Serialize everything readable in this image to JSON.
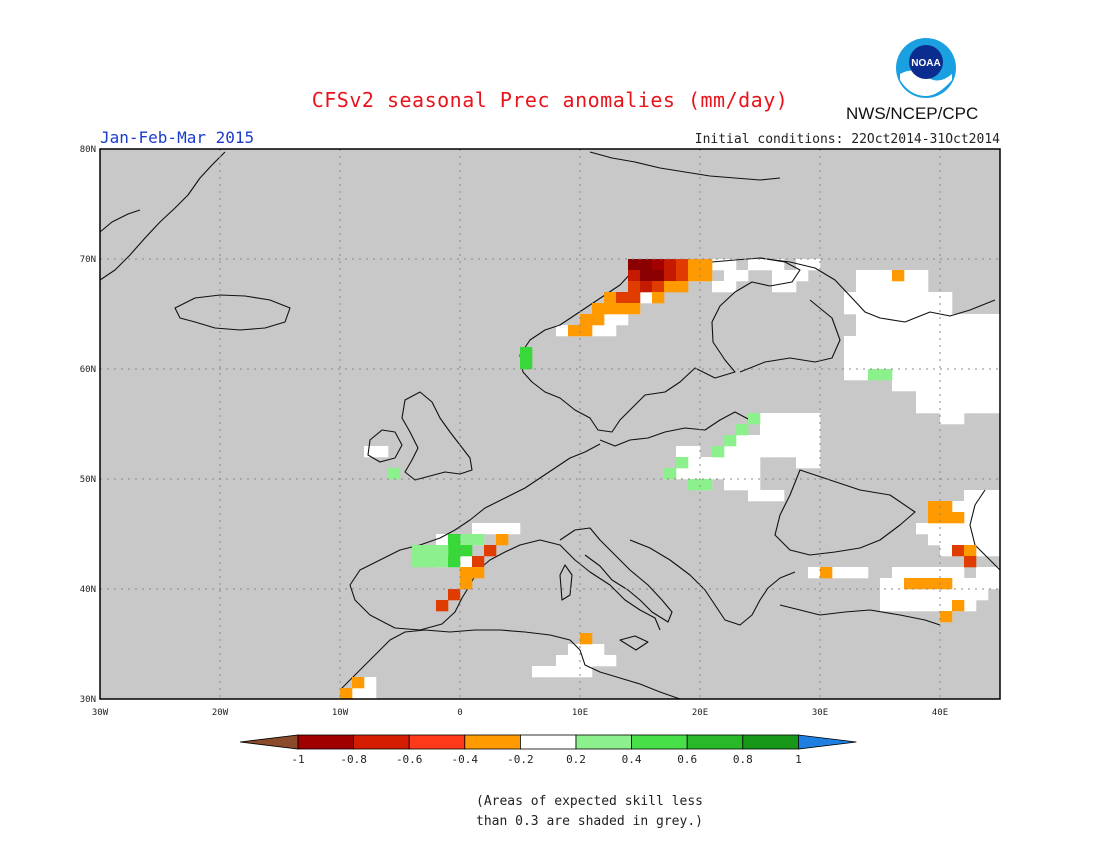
{
  "header": {
    "title": "CFSv2 seasonal Prec anomalies (mm/day)",
    "season": "Jan-Feb-Mar 2015",
    "init_conditions": "Initial conditions: 22Oct2014-31Oct2014",
    "agency": "NWS/NCEP/CPC",
    "logo_text": "NOAA"
  },
  "map": {
    "lon_range": [
      -30,
      45
    ],
    "lat_range": [
      30,
      80
    ],
    "lon_ticks": [
      {
        "v": -30,
        "label": "30W"
      },
      {
        "v": -20,
        "label": "20W"
      },
      {
        "v": -10,
        "label": "10W"
      },
      {
        "v": 0,
        "label": "0"
      },
      {
        "v": 10,
        "label": "10E"
      },
      {
        "v": 20,
        "label": "20E"
      },
      {
        "v": 30,
        "label": "30E"
      },
      {
        "v": 40,
        "label": "40E"
      }
    ],
    "lat_ticks": [
      {
        "v": 30,
        "label": "30N"
      },
      {
        "v": 40,
        "label": "40N"
      },
      {
        "v": 50,
        "label": "50N"
      },
      {
        "v": 60,
        "label": "60N"
      },
      {
        "v": 70,
        "label": "70N"
      },
      {
        "v": 80,
        "label": "80N"
      }
    ],
    "background_color": "#c8c8c8",
    "coast_color": "#111111",
    "grid": "dotted",
    "white_cells": [
      [
        21,
        69
      ],
      [
        22,
        69
      ],
      [
        24,
        69
      ],
      [
        25,
        69
      ],
      [
        26,
        69
      ],
      [
        28,
        69
      ],
      [
        29,
        69
      ],
      [
        17,
        68
      ],
      [
        18,
        68
      ],
      [
        19,
        68
      ],
      [
        20,
        68
      ],
      [
        22,
        68
      ],
      [
        23,
        68
      ],
      [
        26,
        68
      ],
      [
        27,
        68
      ],
      [
        28,
        68
      ],
      [
        33,
        68
      ],
      [
        34,
        68
      ],
      [
        35,
        68
      ],
      [
        37,
        68
      ],
      [
        38,
        68
      ],
      [
        15,
        67
      ],
      [
        16,
        67
      ],
      [
        21,
        67
      ],
      [
        22,
        67
      ],
      [
        26,
        67
      ],
      [
        27,
        67
      ],
      [
        33,
        67
      ],
      [
        34,
        67
      ],
      [
        35,
        67
      ],
      [
        36,
        67
      ],
      [
        37,
        67
      ],
      [
        38,
        67
      ],
      [
        14,
        66
      ],
      [
        15,
        66
      ],
      [
        32,
        66
      ],
      [
        33,
        66
      ],
      [
        34,
        66
      ],
      [
        35,
        66
      ],
      [
        36,
        66
      ],
      [
        37,
        66
      ],
      [
        38,
        66
      ],
      [
        39,
        66
      ],
      [
        40,
        66
      ],
      [
        13,
        65
      ],
      [
        14,
        65
      ],
      [
        32,
        65
      ],
      [
        33,
        65
      ],
      [
        34,
        65
      ],
      [
        35,
        65
      ],
      [
        36,
        65
      ],
      [
        37,
        65
      ],
      [
        38,
        65
      ],
      [
        39,
        65
      ],
      [
        40,
        65
      ],
      [
        12,
        64
      ],
      [
        13,
        64
      ],
      [
        33,
        64
      ],
      [
        34,
        64
      ],
      [
        35,
        64
      ],
      [
        36,
        64
      ],
      [
        37,
        64
      ],
      [
        38,
        64
      ],
      [
        39,
        64
      ],
      [
        40,
        64
      ],
      [
        41,
        64
      ],
      [
        42,
        64
      ],
      [
        43,
        64
      ],
      [
        44,
        64
      ],
      [
        8,
        63
      ],
      [
        9,
        63
      ],
      [
        10,
        63
      ],
      [
        11,
        63
      ],
      [
        12,
        63
      ],
      [
        33,
        63
      ],
      [
        34,
        63
      ],
      [
        35,
        63
      ],
      [
        36,
        63
      ],
      [
        37,
        63
      ],
      [
        38,
        63
      ],
      [
        39,
        63
      ],
      [
        40,
        63
      ],
      [
        41,
        63
      ],
      [
        42,
        63
      ],
      [
        43,
        63
      ],
      [
        44,
        63
      ],
      [
        32,
        62
      ],
      [
        33,
        62
      ],
      [
        34,
        62
      ],
      [
        35,
        62
      ],
      [
        36,
        62
      ],
      [
        37,
        62
      ],
      [
        38,
        62
      ],
      [
        39,
        62
      ],
      [
        40,
        62
      ],
      [
        41,
        62
      ],
      [
        42,
        62
      ],
      [
        43,
        62
      ],
      [
        44,
        62
      ],
      [
        32,
        61
      ],
      [
        33,
        61
      ],
      [
        34,
        61
      ],
      [
        35,
        61
      ],
      [
        36,
        61
      ],
      [
        37,
        61
      ],
      [
        38,
        61
      ],
      [
        39,
        61
      ],
      [
        40,
        61
      ],
      [
        41,
        61
      ],
      [
        42,
        61
      ],
      [
        43,
        61
      ],
      [
        44,
        61
      ],
      [
        32,
        60
      ],
      [
        33,
        60
      ],
      [
        34,
        60
      ],
      [
        35,
        60
      ],
      [
        36,
        60
      ],
      [
        37,
        60
      ],
      [
        38,
        60
      ],
      [
        39,
        60
      ],
      [
        40,
        60
      ],
      [
        41,
        60
      ],
      [
        42,
        60
      ],
      [
        43,
        60
      ],
      [
        44,
        60
      ],
      [
        32,
        59
      ],
      [
        33,
        59
      ],
      [
        36,
        59
      ],
      [
        37,
        59
      ],
      [
        38,
        59
      ],
      [
        39,
        59
      ],
      [
        40,
        59
      ],
      [
        41,
        59
      ],
      [
        42,
        59
      ],
      [
        43,
        59
      ],
      [
        44,
        59
      ],
      [
        36,
        58
      ],
      [
        37,
        58
      ],
      [
        38,
        58
      ],
      [
        39,
        58
      ],
      [
        40,
        58
      ],
      [
        41,
        58
      ],
      [
        42,
        58
      ],
      [
        43,
        58
      ],
      [
        44,
        58
      ],
      [
        38,
        57
      ],
      [
        39,
        57
      ],
      [
        40,
        57
      ],
      [
        41,
        57
      ],
      [
        42,
        57
      ],
      [
        43,
        57
      ],
      [
        44,
        57
      ],
      [
        38,
        56
      ],
      [
        39,
        56
      ],
      [
        40,
        56
      ],
      [
        41,
        56
      ],
      [
        42,
        56
      ],
      [
        43,
        56
      ],
      [
        44,
        56
      ],
      [
        25,
        55
      ],
      [
        26,
        55
      ],
      [
        27,
        55
      ],
      [
        28,
        55
      ],
      [
        29,
        55
      ],
      [
        40,
        55
      ],
      [
        41,
        55
      ],
      [
        25,
        54
      ],
      [
        26,
        54
      ],
      [
        27,
        54
      ],
      [
        28,
        54
      ],
      [
        29,
        54
      ],
      [
        22,
        53
      ],
      [
        23,
        53
      ],
      [
        24,
        53
      ],
      [
        25,
        53
      ],
      [
        26,
        53
      ],
      [
        27,
        53
      ],
      [
        28,
        53
      ],
      [
        29,
        53
      ],
      [
        -8,
        52
      ],
      [
        -7,
        52
      ],
      [
        18,
        52
      ],
      [
        19,
        52
      ],
      [
        21,
        52
      ],
      [
        22,
        52
      ],
      [
        23,
        52
      ],
      [
        24,
        52
      ],
      [
        25,
        52
      ],
      [
        26,
        52
      ],
      [
        27,
        52
      ],
      [
        28,
        52
      ],
      [
        29,
        52
      ],
      [
        18,
        51
      ],
      [
        19,
        51
      ],
      [
        20,
        51
      ],
      [
        21,
        51
      ],
      [
        22,
        51
      ],
      [
        23,
        51
      ],
      [
        24,
        51
      ],
      [
        28,
        51
      ],
      [
        29,
        51
      ],
      [
        17,
        50
      ],
      [
        18,
        50
      ],
      [
        19,
        50
      ],
      [
        20,
        50
      ],
      [
        21,
        50
      ],
      [
        22,
        50
      ],
      [
        23,
        50
      ],
      [
        24,
        50
      ],
      [
        20,
        49
      ],
      [
        22,
        49
      ],
      [
        23,
        49
      ],
      [
        24,
        49
      ],
      [
        24,
        48
      ],
      [
        25,
        48
      ],
      [
        26,
        48
      ],
      [
        42,
        48
      ],
      [
        43,
        48
      ],
      [
        44,
        48
      ],
      [
        41,
        47
      ],
      [
        42,
        47
      ],
      [
        43,
        47
      ],
      [
        44,
        47
      ],
      [
        42,
        46
      ],
      [
        43,
        46
      ],
      [
        44,
        46
      ],
      [
        38,
        45
      ],
      [
        39,
        45
      ],
      [
        40,
        45
      ],
      [
        41,
        45
      ],
      [
        42,
        45
      ],
      [
        43,
        45
      ],
      [
        44,
        45
      ],
      [
        39,
        44
      ],
      [
        40,
        44
      ],
      [
        41,
        44
      ],
      [
        42,
        44
      ],
      [
        43,
        44
      ],
      [
        44,
        44
      ],
      [
        40,
        43
      ],
      [
        41,
        43
      ],
      [
        43,
        43
      ],
      [
        44,
        43
      ],
      [
        1,
        45
      ],
      [
        2,
        45
      ],
      [
        3,
        45
      ],
      [
        4,
        45
      ],
      [
        -2,
        44
      ],
      [
        -1,
        44
      ],
      [
        0,
        44
      ],
      [
        1,
        44
      ],
      [
        -2,
        42
      ],
      [
        -1,
        42
      ],
      [
        0,
        42
      ],
      [
        1,
        42
      ],
      [
        29,
        41
      ],
      [
        31,
        41
      ],
      [
        32,
        41
      ],
      [
        33,
        41
      ],
      [
        36,
        41
      ],
      [
        37,
        41
      ],
      [
        38,
        41
      ],
      [
        39,
        41
      ],
      [
        40,
        41
      ],
      [
        41,
        41
      ],
      [
        43,
        41
      ],
      [
        44,
        41
      ],
      [
        35,
        40
      ],
      [
        36,
        40
      ],
      [
        37,
        40
      ],
      [
        38,
        40
      ],
      [
        39,
        40
      ],
      [
        40,
        40
      ],
      [
        41,
        40
      ],
      [
        42,
        40
      ],
      [
        43,
        40
      ],
      [
        44,
        40
      ],
      [
        35,
        39
      ],
      [
        36,
        39
      ],
      [
        37,
        39
      ],
      [
        38,
        39
      ],
      [
        39,
        39
      ],
      [
        40,
        39
      ],
      [
        41,
        39
      ],
      [
        42,
        39
      ],
      [
        43,
        39
      ],
      [
        35,
        38
      ],
      [
        36,
        38
      ],
      [
        37,
        38
      ],
      [
        38,
        38
      ],
      [
        39,
        38
      ],
      [
        40,
        38
      ],
      [
        41,
        38
      ],
      [
        42,
        38
      ],
      [
        40,
        37
      ],
      [
        9,
        34
      ],
      [
        10,
        34
      ],
      [
        11,
        34
      ],
      [
        8,
        33
      ],
      [
        9,
        33
      ],
      [
        10,
        33
      ],
      [
        11,
        33
      ],
      [
        12,
        33
      ],
      [
        6,
        32
      ],
      [
        7,
        32
      ],
      [
        8,
        32
      ],
      [
        9,
        32
      ],
      [
        10,
        32
      ],
      [
        -9,
        31
      ],
      [
        -8,
        31
      ],
      [
        -9,
        30
      ],
      [
        -8,
        30
      ]
    ],
    "colored_cells": [
      [
        14,
        69,
        "#8b0000"
      ],
      [
        15,
        69,
        "#8b0000"
      ],
      [
        16,
        69,
        "#a40000"
      ],
      [
        17,
        69,
        "#c51a00"
      ],
      [
        18,
        69,
        "#e03c00"
      ],
      [
        19,
        69,
        "#ff9a00"
      ],
      [
        20,
        69,
        "#ff9a00"
      ],
      [
        14,
        68,
        "#c51a00"
      ],
      [
        15,
        68,
        "#8b0000"
      ],
      [
        16,
        68,
        "#8b0000"
      ],
      [
        17,
        68,
        "#c51a00"
      ],
      [
        18,
        68,
        "#e03c00"
      ],
      [
        19,
        68,
        "#ff9a00"
      ],
      [
        20,
        68,
        "#ff9a00"
      ],
      [
        14,
        67,
        "#e03c00"
      ],
      [
        15,
        67,
        "#c51a00"
      ],
      [
        16,
        67,
        "#e03c00"
      ],
      [
        17,
        67,
        "#ff9a00"
      ],
      [
        18,
        67,
        "#ff9a00"
      ],
      [
        36,
        68,
        "#ff9a00"
      ],
      [
        12,
        66,
        "#ff9a00"
      ],
      [
        13,
        66,
        "#e03c00"
      ],
      [
        14,
        66,
        "#e03c00"
      ],
      [
        16,
        66,
        "#ff9a00"
      ],
      [
        11,
        65,
        "#ff9a00"
      ],
      [
        12,
        65,
        "#ff9a00"
      ],
      [
        13,
        65,
        "#ff9a00"
      ],
      [
        14,
        65,
        "#ff9a00"
      ],
      [
        10,
        64,
        "#ff9a00"
      ],
      [
        11,
        64,
        "#ff9a00"
      ],
      [
        9,
        63,
        "#ff9a00"
      ],
      [
        10,
        63,
        "#ff9a00"
      ],
      [
        5,
        61,
        "#38d838"
      ],
      [
        5,
        60,
        "#38d838"
      ],
      [
        34,
        59,
        "#8cf08c"
      ],
      [
        35,
        59,
        "#8cf08c"
      ],
      [
        24,
        55,
        "#8cf08c"
      ],
      [
        23,
        54,
        "#8cf08c"
      ],
      [
        22,
        53,
        "#8cf08c"
      ],
      [
        21,
        52,
        "#8cf08c"
      ],
      [
        18,
        51,
        "#8cf08c"
      ],
      [
        17,
        50,
        "#8cf08c"
      ],
      [
        -6,
        50,
        "#8cf08c"
      ],
      [
        19,
        49,
        "#8cf08c"
      ],
      [
        20,
        49,
        "#8cf08c"
      ],
      [
        39,
        47,
        "#ff9a00"
      ],
      [
        40,
        47,
        "#ff9a00"
      ],
      [
        39,
        46,
        "#ff9a00"
      ],
      [
        40,
        46,
        "#ff9a00"
      ],
      [
        41,
        46,
        "#ff9a00"
      ],
      [
        1,
        44,
        "#8cf08c"
      ],
      [
        0,
        44,
        "#8cf08c"
      ],
      [
        -1,
        43,
        "#38d838"
      ],
      [
        0,
        43,
        "#38d838"
      ],
      [
        -1,
        44,
        "#38d838"
      ],
      [
        -4,
        42,
        "#8cf08c"
      ],
      [
        -3,
        42,
        "#8cf08c"
      ],
      [
        -2,
        42,
        "#8cf08c"
      ],
      [
        -1,
        42,
        "#38d838"
      ],
      [
        -4,
        43,
        "#8cf08c"
      ],
      [
        -3,
        43,
        "#8cf08c"
      ],
      [
        -2,
        43,
        "#8cf08c"
      ],
      [
        3,
        44,
        "#ff9a00"
      ],
      [
        2,
        43,
        "#e03c00"
      ],
      [
        1,
        42,
        "#e03c00"
      ],
      [
        1,
        41,
        "#ff9a00"
      ],
      [
        0,
        41,
        "#ff9a00"
      ],
      [
        0,
        40,
        "#ff9a00"
      ],
      [
        -1,
        39,
        "#e03c00"
      ],
      [
        -2,
        38,
        "#e03c00"
      ],
      [
        41,
        43,
        "#e03c00"
      ],
      [
        42,
        43,
        "#ff9a00"
      ],
      [
        42,
        42,
        "#e03c00"
      ],
      [
        30,
        41,
        "#ff9a00"
      ],
      [
        37,
        40,
        "#ff9a00"
      ],
      [
        38,
        40,
        "#ff9a00"
      ],
      [
        39,
        40,
        "#ff9a00"
      ],
      [
        40,
        40,
        "#ff9a00"
      ],
      [
        41,
        38,
        "#ff9a00"
      ],
      [
        40,
        37,
        "#ff9a00"
      ],
      [
        10,
        35,
        "#ff9a00"
      ],
      [
        -9,
        31,
        "#ff9a00"
      ],
      [
        -10,
        30,
        "#ff9a00"
      ]
    ]
  },
  "colorbar": {
    "labels": [
      "-1",
      "-0.8",
      "-0.6",
      "-0.4",
      "-0.2",
      "0.2",
      "0.4",
      "0.6",
      "0.8",
      "1"
    ],
    "colors": [
      "#8b4a2a",
      "#a00000",
      "#d41c00",
      "#ff3a1a",
      "#ff9a00",
      "#ffffff",
      "#8cf08c",
      "#48e048",
      "#28b828",
      "#189818",
      "#1f7fe0"
    ]
  },
  "note": {
    "line1": "(Areas of expected skill less",
    "line2": "than 0.3 are shaded in grey.)"
  }
}
